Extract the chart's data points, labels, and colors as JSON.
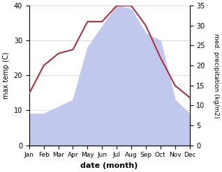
{
  "months": [
    "Jan",
    "Feb",
    "Mar",
    "Apr",
    "May",
    "Jun",
    "Jul",
    "Aug",
    "Sep",
    "Oct",
    "Nov",
    "Dec"
  ],
  "temperature": [
    13,
    20,
    23,
    24,
    31,
    31,
    35,
    35,
    30,
    22,
    15,
    12
  ],
  "precipitation": [
    9,
    9,
    11,
    13,
    28,
    34,
    40,
    39,
    32,
    30,
    13,
    9
  ],
  "temp_color": "#b03040",
  "precip_color": "#c0c8ee",
  "left_ylim": [
    0,
    40
  ],
  "right_ylim": [
    0,
    35
  ],
  "left_yticks": [
    0,
    10,
    20,
    30,
    40
  ],
  "right_yticks": [
    0,
    5,
    10,
    15,
    20,
    25,
    30,
    35
  ],
  "xlabel": "date (month)",
  "ylabel_left": "max temp (C)",
  "ylabel_right": "med. precipitation (kg/m2)",
  "figsize": [
    3.18,
    2.47
  ],
  "dpi": 100
}
